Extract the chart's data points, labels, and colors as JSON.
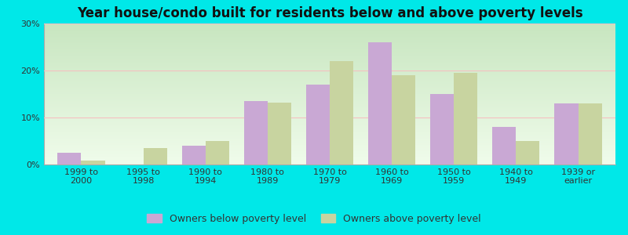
{
  "title": "Year house/condo built for residents below and above poverty levels",
  "categories": [
    "1999 to\n2000",
    "1995 to\n1998",
    "1990 to\n1994",
    "1980 to\n1989",
    "1970 to\n1979",
    "1960 to\n1969",
    "1950 to\n1959",
    "1940 to\n1949",
    "1939 or\nearlier"
  ],
  "below_poverty": [
    2.5,
    0.0,
    4.0,
    13.5,
    17.0,
    26.0,
    15.0,
    8.0,
    13.0
  ],
  "above_poverty": [
    0.8,
    3.5,
    5.0,
    13.2,
    22.0,
    19.0,
    19.5,
    5.0,
    13.0
  ],
  "below_color": "#c9a8d4",
  "above_color": "#c8d4a0",
  "ylim": [
    0,
    30
  ],
  "yticks": [
    0,
    10,
    20,
    30
  ],
  "ytick_labels": [
    "0%",
    "10%",
    "20%",
    "30%"
  ],
  "bar_width": 0.38,
  "legend_below_label": "Owners below poverty level",
  "legend_above_label": "Owners above poverty level",
  "title_fontsize": 12,
  "tick_fontsize": 8,
  "legend_fontsize": 9,
  "grid_color": "#f5c0c0",
  "border_color": "#aaaaaa",
  "fig_bg_color": "#00e8e8",
  "plot_bg_top": "#c8e6c0",
  "plot_bg_bottom": "#f0faf0"
}
